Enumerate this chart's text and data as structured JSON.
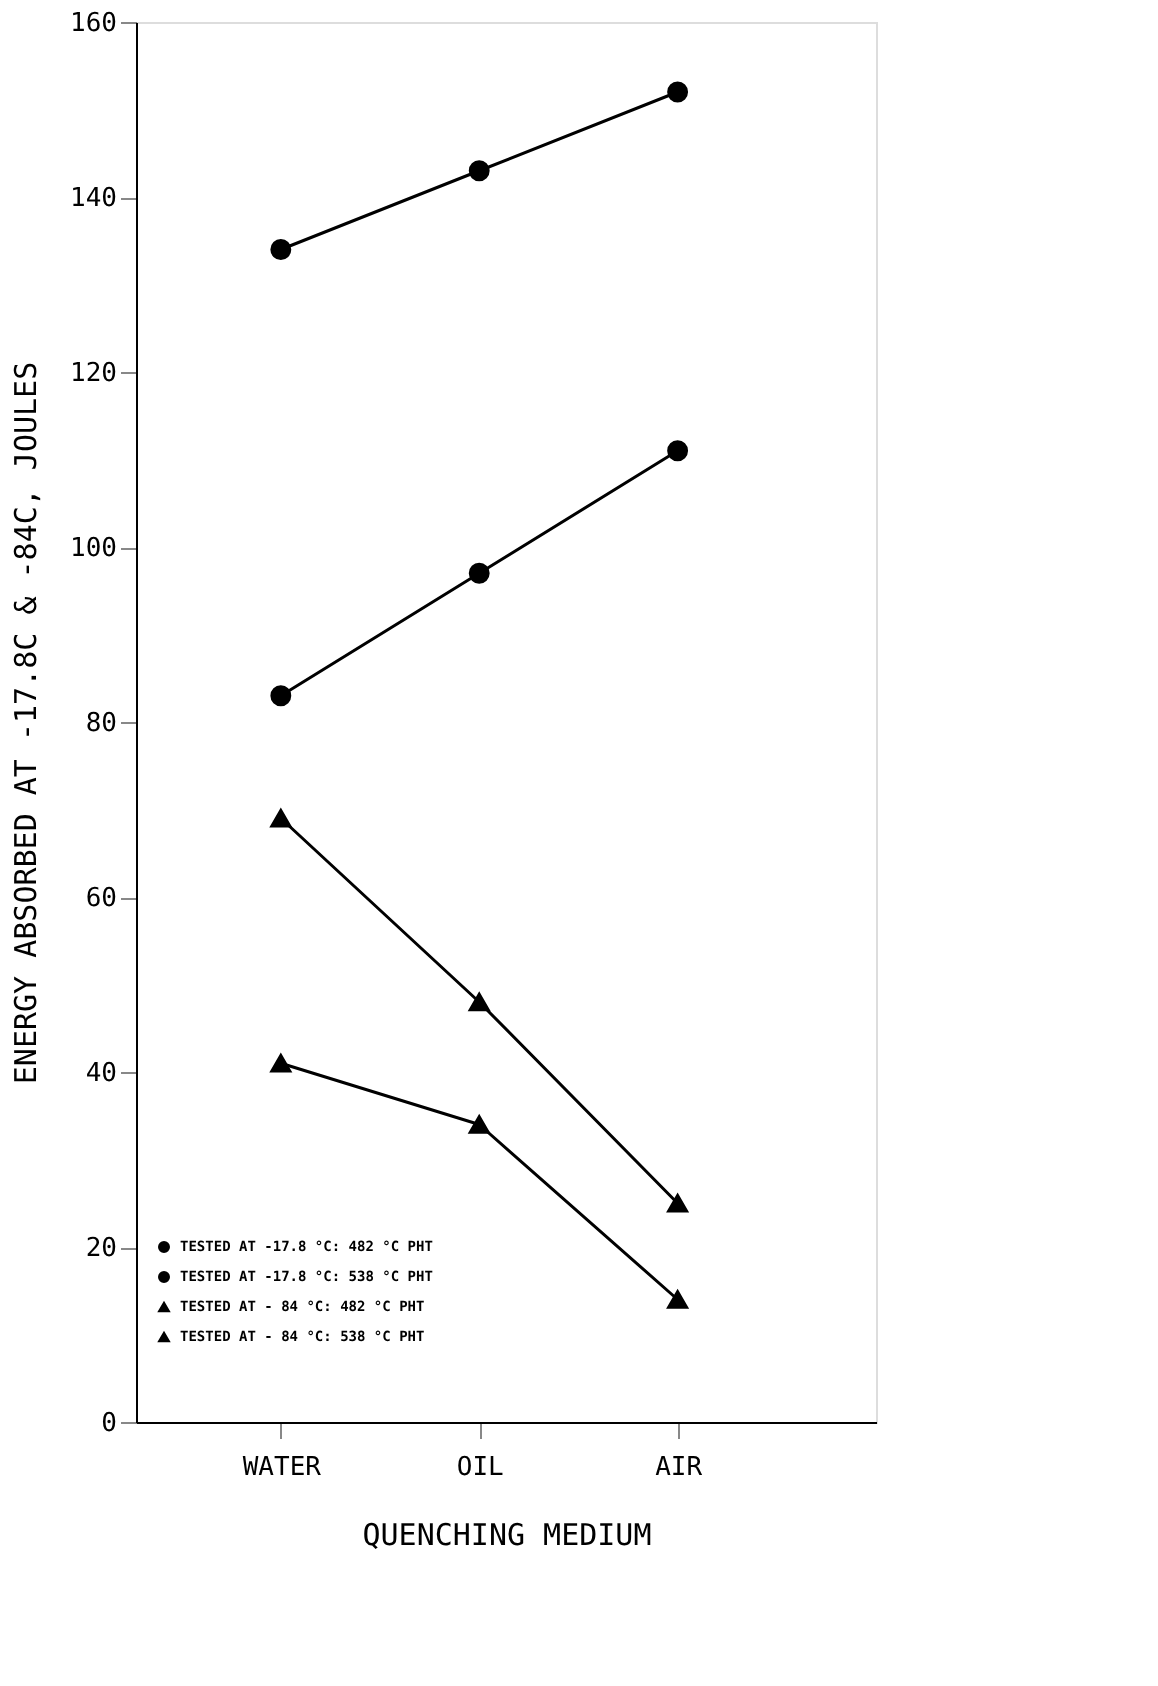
{
  "chart_data": {
    "type": "line",
    "xlabel": "QUENCHING MEDIUM",
    "ylabel": "ENERGY ABSORBED AT -17.8C & -84C, JOULES",
    "categories": [
      "WATER",
      "OIL",
      "AIR"
    ],
    "series": [
      {
        "name": "TESTED AT -17.8 °C: 482 °C PHT",
        "color": "#000000",
        "marker": "circle",
        "values": [
          83,
          97,
          111
        ]
      },
      {
        "name": "TESTED AT -17.8 °C: 538 °C PHT",
        "color": "#000000",
        "marker": "circle",
        "values": [
          134,
          143,
          152
        ]
      },
      {
        "name": "TESTED AT - 84 °C: 482 °C PHT",
        "color": "#000000",
        "marker": "triangle",
        "values": [
          41,
          34,
          14
        ]
      },
      {
        "name": "TESTED AT - 84 °C: 538 °C PHT",
        "color": "#000000",
        "marker": "triangle",
        "values": [
          69,
          48,
          25
        ]
      }
    ],
    "ylim": [
      0,
      160
    ],
    "yticks": [
      0,
      20,
      40,
      60,
      80,
      100,
      120,
      140,
      160
    ],
    "grid": false,
    "legend": "bottom left",
    "line_style": "solid"
  }
}
